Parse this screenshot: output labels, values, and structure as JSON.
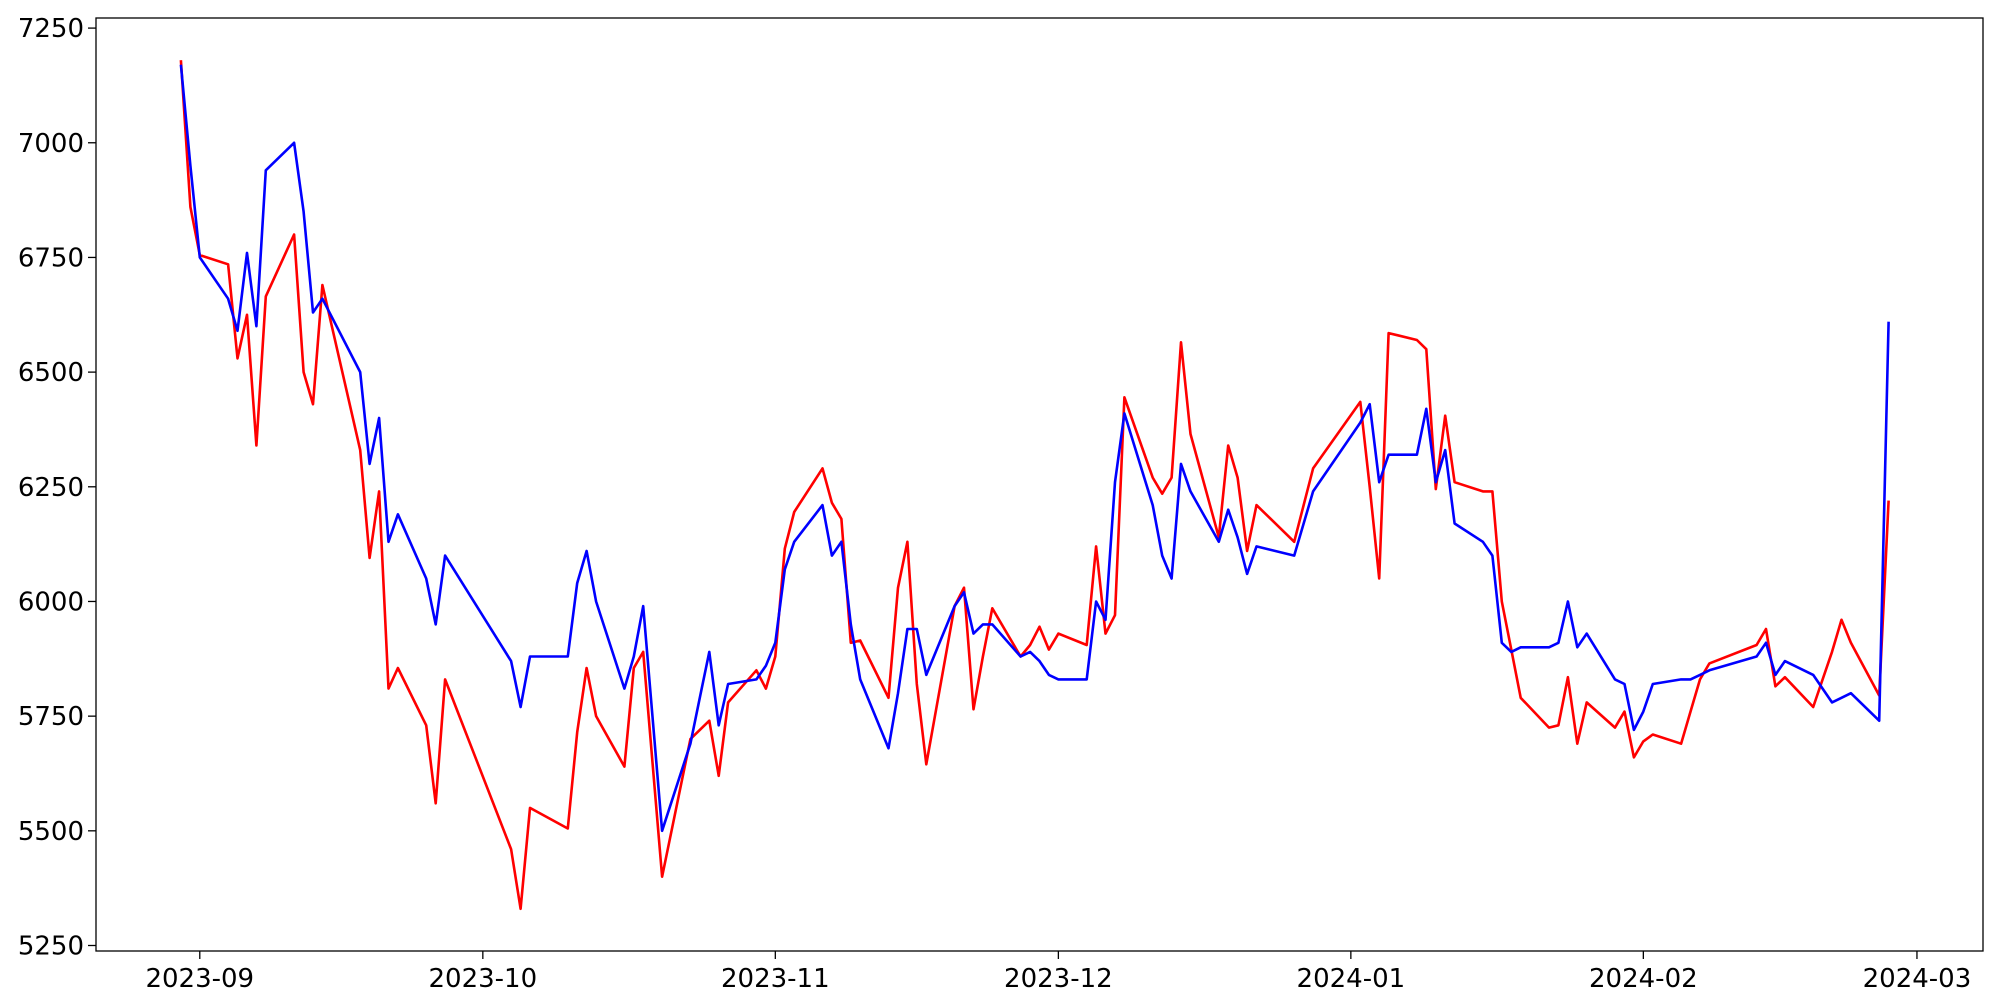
{
  "chart_data": {
    "type": "line",
    "x": [
      19599,
      19600,
      19601,
      19604,
      19605,
      19606,
      19607,
      19608,
      19611,
      19612,
      19613,
      19614,
      19618,
      19619,
      19620,
      19621,
      19622,
      19625,
      19626,
      19627,
      19634,
      19635,
      19636,
      19640,
      19641,
      19642,
      19643,
      19646,
      19647,
      19648,
      19650,
      19653,
      19654,
      19655,
      19656,
      19657,
      19660,
      19661,
      19662,
      19663,
      19664,
      19667,
      19668,
      19669,
      19670,
      19671,
      19674,
      19675,
      19676,
      19677,
      19678,
      19681,
      19682,
      19683,
      19684,
      19685,
      19688,
      19689,
      19690,
      19691,
      19692,
      19695,
      19696,
      19697,
      19698,
      19699,
      19702,
      19703,
      19704,
      19705,
      19706,
      19709,
      19710,
      19711,
      19712,
      19713,
      19717,
      19719,
      19724,
      19725,
      19726,
      19727,
      19730,
      19731,
      19732,
      19733,
      19734,
      19737,
      19738,
      19739,
      19740,
      19741,
      19744,
      19745,
      19746,
      19747,
      19748,
      19751,
      19752,
      19753,
      19754,
      19755,
      19758,
      19759,
      19760,
      19761,
      19766,
      19767,
      19768,
      19769,
      19772,
      19774,
      19775,
      19776,
      19779,
      19780
    ],
    "series": [
      {
        "color": "red",
        "values": [
          7180,
          6860,
          6755,
          6735,
          6530,
          6625,
          6340,
          6665,
          6800,
          6500,
          6430,
          6690,
          6330,
          6095,
          6240,
          5810,
          5855,
          5730,
          5560,
          5830,
          5460,
          5330,
          5550,
          5505,
          5715,
          5855,
          5750,
          5640,
          5855,
          5890,
          5400,
          5700,
          5720,
          5740,
          5620,
          5780,
          5850,
          5810,
          5880,
          6115,
          6195,
          6290,
          6215,
          6180,
          5910,
          5915,
          5790,
          6030,
          6130,
          5820,
          5645,
          5990,
          6030,
          5765,
          5880,
          5985,
          5880,
          5905,
          5945,
          5895,
          5930,
          5905,
          6120,
          5930,
          5970,
          6445,
          6270,
          6235,
          6270,
          6565,
          6365,
          6140,
          6340,
          6270,
          6110,
          6210,
          6130,
          6290,
          6435,
          6250,
          6050,
          6585,
          6570,
          6550,
          6245,
          6405,
          6260,
          6240,
          6240,
          6000,
          5895,
          5790,
          5725,
          5730,
          5835,
          5690,
          5780,
          5725,
          5760,
          5660,
          5695,
          5710,
          5690,
          5760,
          5830,
          5865,
          5905,
          5940,
          5815,
          5835,
          5770,
          5890,
          5960,
          5910,
          5795,
          6220
        ]
      },
      {
        "color": "blue",
        "values": [
          7170,
          6950,
          6750,
          6660,
          6590,
          6760,
          6600,
          6940,
          7000,
          6850,
          6630,
          6660,
          6500,
          6300,
          6400,
          6130,
          6190,
          6050,
          5950,
          6100,
          5870,
          5770,
          5880,
          5880,
          6040,
          6110,
          6000,
          5810,
          5880,
          5990,
          5500,
          5690,
          5790,
          5890,
          5730,
          5820,
          5830,
          5860,
          5910,
          6070,
          6130,
          6210,
          6100,
          6130,
          5950,
          5830,
          5680,
          5800,
          5940,
          5940,
          5840,
          5990,
          6020,
          5930,
          5950,
          5950,
          5880,
          5890,
          5870,
          5840,
          5830,
          5830,
          6000,
          5960,
          6260,
          6410,
          6210,
          6100,
          6050,
          6300,
          6240,
          6130,
          6200,
          6140,
          6060,
          6120,
          6100,
          6240,
          6390,
          6430,
          6260,
          6320,
          6320,
          6420,
          6260,
          6330,
          6170,
          6130,
          6100,
          5910,
          5890,
          5900,
          5900,
          5910,
          6000,
          5900,
          5930,
          5830,
          5820,
          5720,
          5760,
          5820,
          5830,
          5830,
          5840,
          5850,
          5880,
          5910,
          5840,
          5870,
          5840,
          5780,
          5790,
          5800,
          5740,
          6610
        ]
      }
    ],
    "xlim": [
      19590,
      19790
    ],
    "xticks": [
      {
        "value": 19601,
        "label": "2023-09"
      },
      {
        "value": 19631,
        "label": "2023-10"
      },
      {
        "value": 19662,
        "label": "2023-11"
      },
      {
        "value": 19692,
        "label": "2023-12"
      },
      {
        "value": 19723,
        "label": "2024-01"
      },
      {
        "value": 19754,
        "label": "2024-02"
      },
      {
        "value": 19783,
        "label": "2024-03"
      }
    ],
    "ylim": [
      5238,
      7272
    ],
    "yticks": [
      5250,
      5500,
      5750,
      6000,
      6250,
      6500,
      6750,
      7000,
      7250
    ],
    "grid": false
  }
}
